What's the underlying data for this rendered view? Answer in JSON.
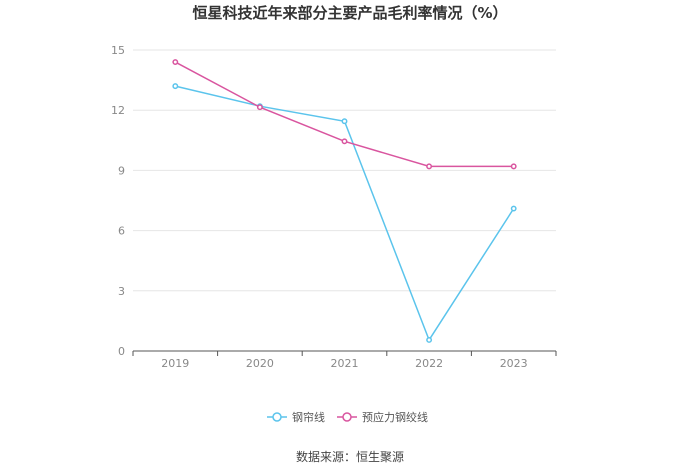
{
  "chart_data": {
    "type": "line",
    "title": "恒星科技近年来部分主要产品毛利率情况（%）",
    "categories": [
      "2019",
      "2020",
      "2021",
      "2022",
      "2023"
    ],
    "series": [
      {
        "name": "钢帘线",
        "color": "#5bc4ec",
        "values": [
          13.2,
          12.2,
          11.45,
          0.55,
          7.1
        ]
      },
      {
        "name": "预应力钢绞线",
        "color": "#d9559f",
        "values": [
          14.4,
          12.15,
          10.45,
          9.2,
          9.2
        ]
      }
    ],
    "xlabel": "",
    "ylabel": "",
    "ylim": [
      0,
      15
    ],
    "yticks": [
      0,
      3,
      6,
      9,
      12,
      15
    ],
    "grid": true,
    "legend": "bottom"
  },
  "source": "数据来源：恒生聚源"
}
